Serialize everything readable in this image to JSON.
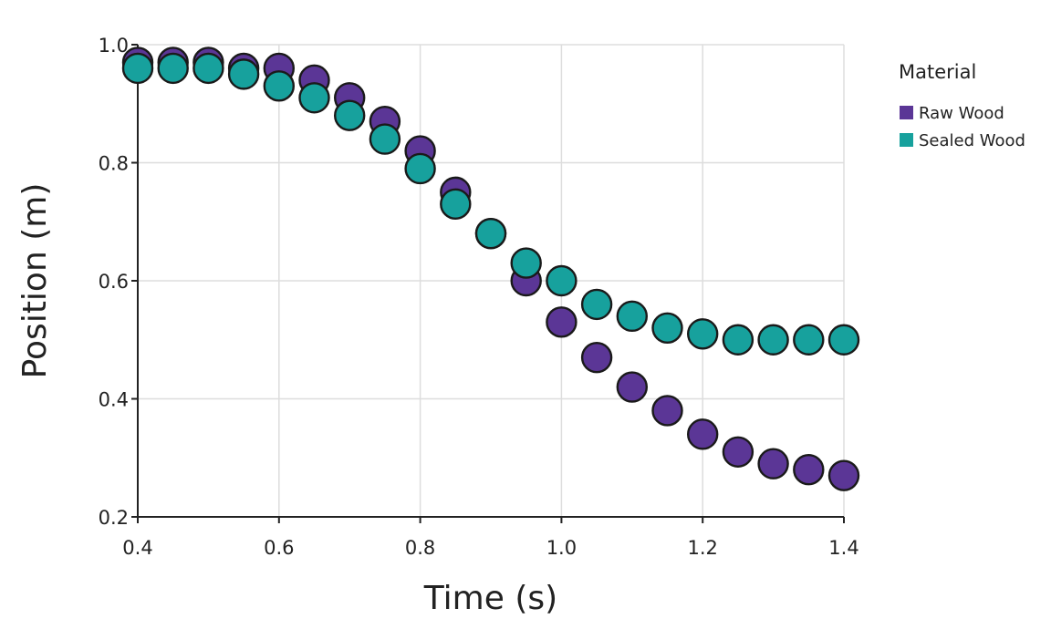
{
  "chart_data": {
    "type": "scatter",
    "title": "",
    "xlabel": "Time (s)",
    "ylabel": "Position (m)",
    "xlim": [
      0.4,
      1.4
    ],
    "ylim": [
      0.2,
      1.0
    ],
    "x_ticks": [
      "0.4",
      "0.6",
      "0.8",
      "1.0",
      "1.2",
      "1.4"
    ],
    "y_ticks": [
      "0.2",
      "0.4",
      "0.6",
      "0.8",
      "1.0"
    ],
    "grid": true,
    "legend": {
      "title": "Material",
      "placement": "right-top"
    },
    "series": [
      {
        "name": "Raw Wood",
        "color": "#5b3696",
        "x": [
          0.4,
          0.45,
          0.5,
          0.55,
          0.6,
          0.65,
          0.7,
          0.75,
          0.8,
          0.85,
          0.9,
          0.95,
          1.0,
          1.05,
          1.1,
          1.15,
          1.2,
          1.25,
          1.3,
          1.35,
          1.4
        ],
        "y": [
          0.97,
          0.97,
          0.97,
          0.96,
          0.96,
          0.94,
          0.91,
          0.87,
          0.82,
          0.75,
          0.68,
          0.6,
          0.53,
          0.47,
          0.42,
          0.38,
          0.34,
          0.31,
          0.29,
          0.28,
          0.27
        ]
      },
      {
        "name": "Sealed Wood",
        "color": "#17a19d",
        "x": [
          0.4,
          0.45,
          0.5,
          0.55,
          0.6,
          0.65,
          0.7,
          0.75,
          0.8,
          0.85,
          0.9,
          0.95,
          1.0,
          1.05,
          1.1,
          1.15,
          1.2,
          1.25,
          1.3,
          1.35,
          1.4
        ],
        "y": [
          0.96,
          0.96,
          0.96,
          0.95,
          0.93,
          0.91,
          0.88,
          0.84,
          0.79,
          0.73,
          0.68,
          0.63,
          0.6,
          0.56,
          0.54,
          0.52,
          0.51,
          0.5,
          0.5,
          0.5,
          0.5
        ]
      }
    ]
  }
}
